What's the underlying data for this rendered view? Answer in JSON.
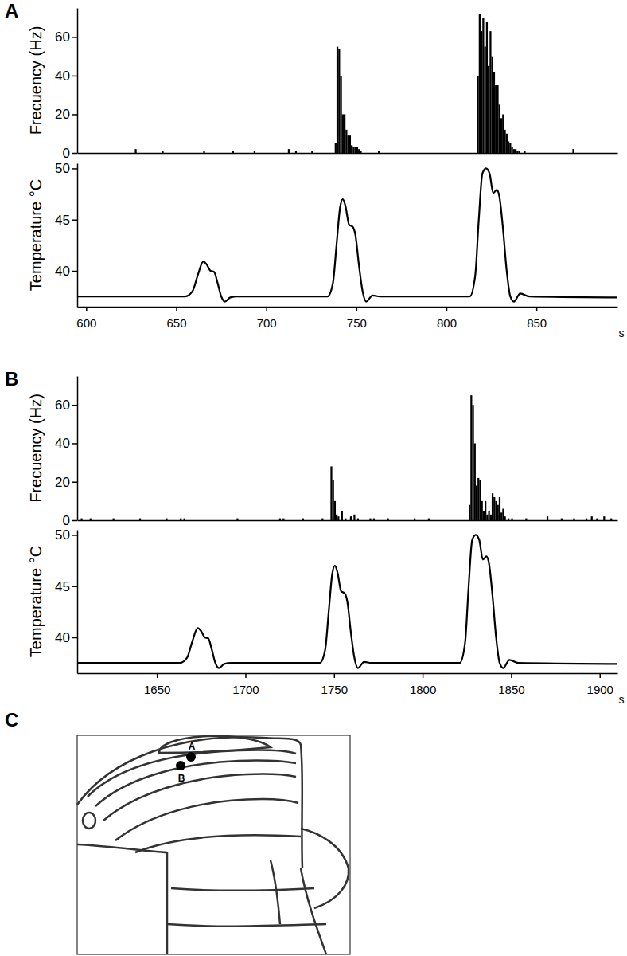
{
  "chart_data": [
    {
      "type": "bar",
      "title": "A",
      "y_label": "Frecuency (Hz)",
      "color": "#000000",
      "tick_labels": "y",
      "xlim": [
        595,
        895
      ],
      "ylim": [
        0,
        75
      ],
      "yticks": [
        0,
        20,
        40,
        60
      ],
      "x": [
        627,
        642,
        665,
        681,
        693,
        712,
        716,
        725,
        738,
        739,
        740,
        741,
        742,
        743,
        744,
        745,
        746,
        747,
        748,
        749,
        750,
        751,
        752,
        762,
        817,
        818,
        819,
        820,
        821,
        822,
        823,
        824,
        825,
        826,
        827,
        828,
        829,
        830,
        831,
        832,
        833,
        834,
        835,
        836,
        837,
        838,
        839,
        840,
        843,
        870
      ],
      "values": [
        2,
        1,
        1,
        1,
        1,
        2,
        1,
        1,
        5,
        55,
        54,
        40,
        20,
        20,
        12,
        9,
        9,
        4,
        3,
        3,
        3,
        2,
        1,
        1,
        40,
        72,
        63,
        70,
        55,
        68,
        45,
        63,
        50,
        42,
        35,
        35,
        25,
        18,
        20,
        12,
        10,
        6,
        5,
        3,
        2,
        2,
        1,
        1,
        1,
        2
      ]
    },
    {
      "type": "line",
      "y_label": "Temperature °C",
      "x_label": "s",
      "color": "#000000",
      "xlim": [
        595,
        895
      ],
      "xticks": [
        600,
        650,
        700,
        750,
        800,
        850
      ],
      "ylim": [
        36.5,
        50.5
      ],
      "yticks": [
        40,
        45,
        50
      ],
      "x": [
        595,
        655,
        659,
        662,
        665,
        667,
        669,
        671,
        673,
        675,
        677,
        680,
        684,
        734,
        737,
        739,
        741,
        742.5,
        744,
        746,
        748,
        749.5,
        751.5,
        753.5,
        755.5,
        759,
        763,
        813,
        816,
        818,
        820,
        822,
        824,
        826,
        828,
        829.5,
        831.5,
        833.5,
        835.5,
        837.5,
        841,
        846,
        895
      ],
      "values": [
        37.5,
        37.5,
        38.0,
        39.6,
        40.9,
        40.6,
        40.0,
        39.9,
        38.8,
        37.5,
        37.0,
        37.4,
        37.5,
        37.5,
        38.8,
        42.5,
        46.2,
        47.0,
        46.3,
        44.5,
        44.3,
        43.5,
        40.5,
        38.0,
        37.0,
        37.6,
        37.5,
        37.5,
        39.5,
        45.0,
        49.5,
        50.0,
        49.5,
        47.6,
        47.9,
        47.2,
        44.0,
        40.0,
        37.5,
        37.0,
        37.8,
        37.5,
        37.4
      ]
    },
    {
      "type": "bar",
      "title": "B",
      "y_label": "Frecuency (Hz)",
      "color": "#000000",
      "tick_labels": "y",
      "xlim": [
        1605,
        1910
      ],
      "ylim": [
        0,
        75
      ],
      "yticks": [
        0,
        20,
        40,
        60
      ],
      "x": [
        1607,
        1612,
        1625,
        1640,
        1655,
        1663,
        1665,
        1695,
        1719,
        1721,
        1732,
        1743,
        1748,
        1749,
        1750,
        1751,
        1752,
        1754,
        1756,
        1759,
        1761,
        1763,
        1770,
        1772,
        1780,
        1795,
        1803,
        1826,
        1827,
        1828,
        1829,
        1830,
        1831,
        1832,
        1833,
        1834,
        1835,
        1836,
        1837,
        1838,
        1839,
        1840,
        1841,
        1842,
        1843,
        1844,
        1845,
        1846,
        1848,
        1850,
        1858,
        1870,
        1878,
        1885,
        1892,
        1895,
        1898,
        1902,
        1906
      ],
      "values": [
        1,
        1,
        1,
        1,
        1,
        1,
        1,
        1,
        1,
        1,
        1,
        1,
        28,
        21,
        10,
        3,
        2,
        5,
        1,
        2,
        3,
        1,
        1,
        1,
        1,
        1,
        1,
        8,
        65,
        60,
        40,
        18,
        22,
        21,
        10,
        5,
        10,
        3,
        5,
        3,
        14,
        12,
        10,
        8,
        12,
        4,
        6,
        2,
        1,
        1,
        1,
        2,
        1,
        1,
        1,
        2,
        1,
        2,
        1
      ]
    },
    {
      "type": "line",
      "y_label": "Temperature °C",
      "x_label": "s",
      "color": "#000000",
      "xlim": [
        1605,
        1910
      ],
      "xticks": [
        1650,
        1700,
        1750,
        1800,
        1850,
        1900
      ],
      "ylim": [
        36.5,
        50.5
      ],
      "yticks": [
        40,
        45,
        50
      ],
      "x": [
        1605,
        1663,
        1667,
        1670,
        1673,
        1675,
        1677,
        1679,
        1681,
        1683,
        1685,
        1688,
        1692,
        1742,
        1745,
        1747,
        1749,
        1750.5,
        1752,
        1754,
        1756,
        1757.5,
        1759.5,
        1761.5,
        1763.5,
        1767,
        1771,
        1821,
        1824,
        1826,
        1828,
        1830,
        1832,
        1834,
        1836,
        1837.5,
        1839.5,
        1841.5,
        1843.5,
        1845.5,
        1849,
        1854,
        1910
      ],
      "values": [
        37.5,
        37.5,
        38.0,
        39.6,
        40.9,
        40.6,
        40.0,
        39.9,
        38.8,
        37.5,
        37.0,
        37.4,
        37.5,
        37.5,
        38.8,
        42.5,
        46.2,
        47.0,
        46.3,
        44.5,
        44.3,
        43.5,
        40.5,
        38.0,
        37.0,
        37.6,
        37.5,
        37.5,
        39.5,
        45.0,
        49.5,
        50.0,
        49.5,
        47.6,
        47.9,
        47.2,
        44.0,
        40.0,
        37.5,
        37.0,
        37.8,
        37.5,
        37.4
      ]
    }
  ],
  "diagram": {
    "title": "C",
    "points": [
      {
        "label": "A"
      },
      {
        "label": "B"
      }
    ]
  }
}
